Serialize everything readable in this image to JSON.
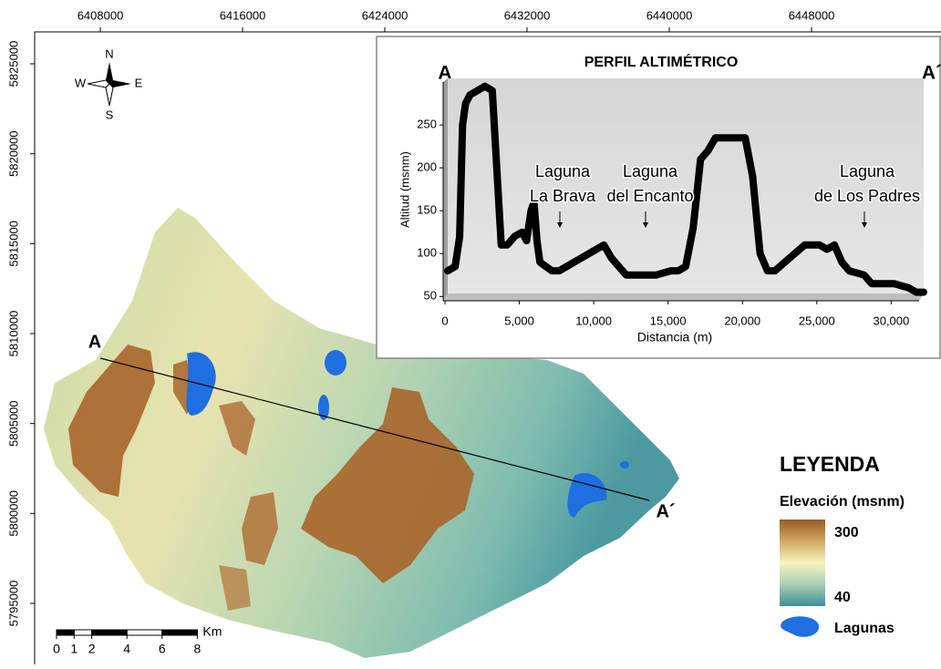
{
  "map": {
    "x_ticks": [
      6408000,
      6416000,
      6424000,
      6432000,
      6440000,
      6448000
    ],
    "y_ticks": [
      5825000,
      5820000,
      5815000,
      5810000,
      5805000,
      5800000,
      5795000
    ],
    "compass": {
      "n": "N",
      "s": "S",
      "e": "E",
      "w": "W"
    },
    "section_start": "A",
    "section_end": "A´",
    "scale_bar": {
      "ticks": [
        0,
        1,
        2,
        4,
        6,
        8
      ],
      "unit": "Km"
    },
    "legend": {
      "title": "LEYENDA",
      "subtitle": "Elevación (msnm)",
      "max_label": "300",
      "min_label": "40",
      "lakes": "Lagunas"
    }
  },
  "chart_data": {
    "type": "line",
    "title": "PERFIL ALTIMÉTRICO",
    "start_label": "A",
    "end_label": "A´",
    "x_label": "Distancia (m)",
    "y_label": "Altitud (msnm)",
    "x": [
      0,
      500,
      800,
      1000,
      1200,
      1500,
      2000,
      2500,
      3000,
      3300,
      3600,
      4000,
      4500,
      5000,
      5300,
      5600,
      5800,
      6000,
      6200,
      7000,
      7500,
      8000,
      8500,
      9000,
      9500,
      10000,
      10500,
      11000,
      11500,
      12000,
      13000,
      14000,
      15000,
      15500,
      16000,
      16500,
      17000,
      17500,
      18000,
      19000,
      20000,
      20500,
      21000,
      21500,
      22000,
      23000,
      24000,
      25000,
      25500,
      26000,
      26500,
      27000,
      28000,
      28500,
      29000,
      30000,
      31000,
      31500,
      32000
    ],
    "series": [
      {
        "color": "#000000",
        "values": [
          80,
          85,
          120,
          250,
          275,
          285,
          290,
          295,
          290,
          200,
          110,
          110,
          120,
          125,
          115,
          150,
          160,
          115,
          90,
          80,
          80,
          85,
          90,
          95,
          100,
          105,
          110,
          95,
          85,
          75,
          75,
          75,
          80,
          80,
          85,
          130,
          210,
          220,
          235,
          235,
          235,
          190,
          100,
          80,
          80,
          95,
          110,
          110,
          105,
          110,
          90,
          80,
          75,
          65,
          65,
          65,
          60,
          55,
          55
        ]
      }
    ],
    "xlim": [
      0,
      32000
    ],
    "ylim": [
      45,
      300
    ],
    "xticks": [
      0,
      {
        "value": 5000,
        "label": "5,000"
      },
      {
        "value": 10000,
        "label": "10,000"
      },
      {
        "value": 15000,
        "label": "15,000"
      },
      {
        "value": 20000,
        "label": "20,000"
      },
      {
        "value": 25000,
        "label": "25,000"
      },
      {
        "value": 30000,
        "label": "30,000"
      }
    ],
    "yticks": [
      50,
      100,
      150,
      200,
      250
    ],
    "annotations": [
      {
        "lines": [
          "Laguna",
          "La Brava"
        ]
      },
      {
        "lines": [
          "Laguna",
          "del Encanto"
        ]
      },
      {
        "lines": [
          "Laguna",
          "de Los Padres"
        ]
      }
    ]
  }
}
